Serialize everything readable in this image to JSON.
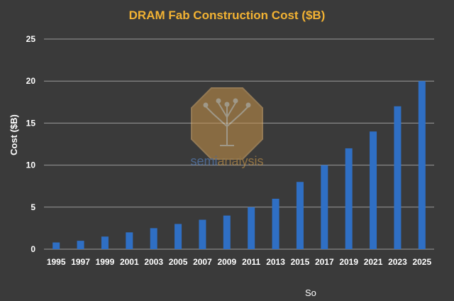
{
  "chart_data": {
    "type": "bar",
    "title": "DRAM Fab Construction Cost ($B)",
    "ylabel": "Cost ($B)",
    "xlabel": "",
    "ylim": [
      0,
      25
    ],
    "yticks": [
      0,
      5,
      10,
      15,
      20,
      25
    ],
    "categories": [
      "1995",
      "1997",
      "1999",
      "2001",
      "2003",
      "2005",
      "2007",
      "2009",
      "2011",
      "2013",
      "2015",
      "2017",
      "2019",
      "2021",
      "2023",
      "2025"
    ],
    "values": [
      0.8,
      1.0,
      1.5,
      2.0,
      2.5,
      3.0,
      3.5,
      4.0,
      5.0,
      6.0,
      8.0,
      10.0,
      12.0,
      14.0,
      17.0,
      20.0
    ],
    "grid": true,
    "legend": "none",
    "colors": {
      "bar": "#2f6fc4",
      "title": "#f2b233",
      "grid": "#9a9a9a",
      "background": "#3a3a3a"
    }
  },
  "watermark": {
    "logo": "semianalysis-tree-logo",
    "text_a": "semi",
    "text_b": "analysis"
  },
  "footer": {
    "text": "So"
  }
}
